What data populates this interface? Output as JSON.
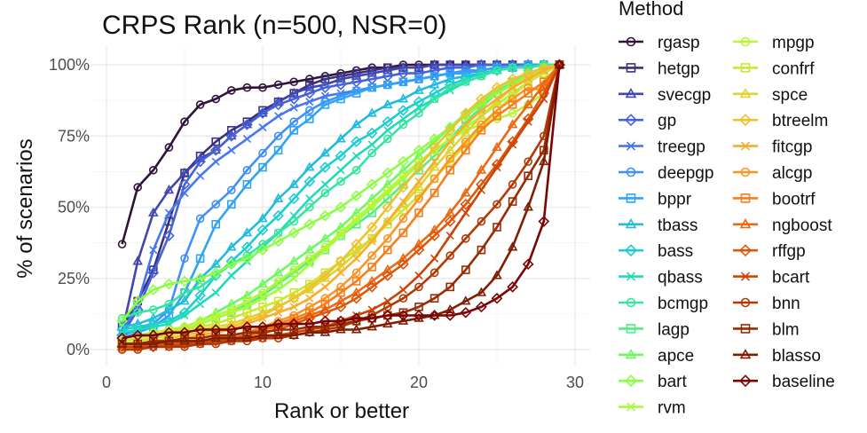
{
  "chart_data": {
    "type": "line",
    "title": "CRPS Rank (n=500, NSR=0)",
    "xlabel": "Rank or better",
    "ylabel": "% of scenarios",
    "xlim": [
      0,
      30
    ],
    "ylim": [
      0,
      100
    ],
    "x_ticks": [
      0,
      10,
      20,
      30
    ],
    "y_ticks": [
      0,
      25,
      50,
      75,
      100
    ],
    "y_tick_labels": [
      "0%",
      "25%",
      "50%",
      "75%",
      "100%"
    ],
    "grid": true,
    "legend_title": "Method",
    "legend_position": "right",
    "x": [
      1,
      2,
      3,
      4,
      5,
      6,
      7,
      8,
      9,
      10,
      11,
      12,
      13,
      14,
      15,
      16,
      17,
      18,
      19,
      20,
      21,
      22,
      23,
      24,
      25,
      26,
      27,
      28,
      29
    ],
    "series": [
      {
        "name": "rgasp",
        "color": "#30123b",
        "marker": "circle",
        "values": [
          37,
          57,
          63,
          71,
          80,
          86,
          88,
          91,
          92,
          92,
          93,
          94,
          95,
          96,
          97,
          98,
          99,
          99,
          100,
          100,
          100,
          100,
          100,
          100,
          100,
          100,
          100,
          100,
          100
        ]
      },
      {
        "name": "hetgp",
        "color": "#3b2f80",
        "marker": "square",
        "values": [
          8,
          17,
          28,
          45,
          62,
          68,
          73,
          77,
          80,
          84,
          87,
          90,
          93,
          95,
          96,
          97,
          98,
          99,
          99,
          99,
          100,
          100,
          100,
          100,
          100,
          100,
          100,
          100,
          100
        ]
      },
      {
        "name": "svecgp",
        "color": "#4146ad",
        "marker": "triangle",
        "values": [
          6,
          31,
          48,
          56,
          62,
          67,
          70,
          75,
          79,
          83,
          87,
          90,
          92,
          93,
          95,
          96,
          97,
          98,
          99,
          99,
          100,
          100,
          100,
          100,
          100,
          100,
          100,
          100,
          100
        ]
      },
      {
        "name": "gp",
        "color": "#4662d7",
        "marker": "diamond",
        "values": [
          5,
          14,
          27,
          40,
          58,
          66,
          70,
          75,
          79,
          83,
          86,
          88,
          90,
          92,
          93,
          94,
          95,
          96,
          97,
          97,
          98,
          99,
          99,
          100,
          100,
          100,
          100,
          100,
          100
        ]
      },
      {
        "name": "treegp",
        "color": "#4676f0",
        "marker": "cross",
        "values": [
          6,
          16,
          35,
          48,
          55,
          61,
          66,
          70,
          74,
          78,
          82,
          85,
          87,
          89,
          90,
          91,
          92,
          93,
          94,
          95,
          96,
          97,
          97,
          98,
          99,
          99,
          100,
          100,
          100
        ]
      },
      {
        "name": "deepgp",
        "color": "#3f8ffc",
        "marker": "circle",
        "values": [
          5,
          7,
          9,
          14,
          32,
          46,
          51,
          56,
          63,
          69,
          75,
          80,
          84,
          87,
          89,
          91,
          92,
          93,
          94,
          95,
          96,
          97,
          98,
          98,
          99,
          99,
          100,
          100,
          100
        ]
      },
      {
        "name": "bppr",
        "color": "#30a4f4",
        "marker": "square",
        "values": [
          4,
          6,
          8,
          12,
          20,
          32,
          44,
          51,
          58,
          64,
          70,
          77,
          81,
          86,
          88,
          90,
          92,
          93,
          94,
          95,
          96,
          97,
          97,
          98,
          99,
          99,
          100,
          100,
          100
        ]
      },
      {
        "name": "tbass",
        "color": "#22bbe0",
        "marker": "triangle",
        "values": [
          8,
          9,
          11,
          14,
          17,
          25,
          30,
          36,
          41,
          46,
          53,
          58,
          64,
          69,
          74,
          79,
          83,
          86,
          88,
          91,
          93,
          95,
          96,
          97,
          98,
          99,
          99,
          100,
          100
        ]
      },
      {
        "name": "bass",
        "color": "#1ccdd1",
        "marker": "diamond",
        "values": [
          7,
          8,
          9,
          10,
          13,
          19,
          26,
          31,
          36,
          42,
          47,
          53,
          59,
          64,
          68,
          73,
          76,
          80,
          84,
          87,
          90,
          93,
          95,
          97,
          98,
          99,
          99,
          100,
          100
        ]
      },
      {
        "name": "qbass",
        "color": "#21dab8",
        "marker": "cross",
        "values": [
          6,
          7,
          8,
          9,
          12,
          16,
          20,
          26,
          31,
          36,
          41,
          47,
          53,
          58,
          63,
          68,
          72,
          77,
          81,
          85,
          88,
          91,
          94,
          96,
          98,
          99,
          99,
          100,
          100
        ]
      },
      {
        "name": "bcmgp",
        "color": "#35e59f",
        "marker": "circle",
        "values": [
          11,
          13,
          14,
          16,
          20,
          22,
          26,
          30,
          33,
          37,
          41,
          45,
          50,
          55,
          59,
          63,
          69,
          74,
          79,
          83,
          88,
          92,
          94,
          96,
          98,
          99,
          99,
          100,
          100
        ]
      },
      {
        "name": "lagp",
        "color": "#4ef17e",
        "marker": "square",
        "values": [
          3,
          4,
          5,
          6,
          7,
          9,
          11,
          13,
          16,
          19,
          23,
          27,
          31,
          35,
          40,
          44,
          48,
          53,
          58,
          63,
          68,
          74,
          80,
          85,
          90,
          94,
          97,
          99,
          100
        ]
      },
      {
        "name": "apce",
        "color": "#6cf95f",
        "marker": "triangle",
        "values": [
          2,
          3,
          4,
          6,
          8,
          10,
          13,
          16,
          19,
          23,
          27,
          31,
          35,
          39,
          43,
          48,
          53,
          58,
          63,
          68,
          73,
          78,
          83,
          87,
          91,
          94,
          97,
          99,
          100
        ]
      },
      {
        "name": "bart",
        "color": "#8cfd44",
        "marker": "diamond",
        "values": [
          10,
          17,
          21,
          23,
          24,
          25,
          27,
          30,
          32,
          35,
          38,
          41,
          44,
          47,
          50,
          54,
          58,
          62,
          66,
          70,
          74,
          78,
          82,
          86,
          90,
          93,
          96,
          99,
          100
        ]
      },
      {
        "name": "rvm",
        "color": "#a4fc3b",
        "marker": "cross",
        "values": [
          3,
          4,
          5,
          6,
          7,
          9,
          11,
          13,
          15,
          18,
          21,
          25,
          30,
          35,
          40,
          45,
          50,
          55,
          60,
          65,
          70,
          74,
          78,
          82,
          86,
          90,
          94,
          97,
          100
        ]
      },
      {
        "name": "mpgp",
        "color": "#b9f435",
        "marker": "circle",
        "values": [
          4,
          5,
          6,
          7,
          8,
          10,
          12,
          14,
          17,
          20,
          24,
          28,
          32,
          36,
          41,
          46,
          51,
          56,
          61,
          66,
          70,
          74,
          77,
          79,
          81,
          83,
          86,
          90,
          100
        ]
      },
      {
        "name": "confrf",
        "color": "#cce632",
        "marker": "square",
        "values": [
          3,
          4,
          5,
          6,
          7,
          8,
          9,
          11,
          13,
          15,
          17,
          20,
          23,
          27,
          31,
          35,
          39,
          44,
          49,
          54,
          60,
          66,
          72,
          78,
          84,
          89,
          94,
          97,
          100
        ]
      },
      {
        "name": "spce",
        "color": "#ddd52f",
        "marker": "triangle",
        "values": [
          2,
          3,
          4,
          5,
          6,
          7,
          8,
          9,
          11,
          13,
          15,
          18,
          21,
          25,
          29,
          34,
          39,
          45,
          51,
          57,
          64,
          70,
          76,
          82,
          87,
          92,
          96,
          98,
          100
        ]
      },
      {
        "name": "btreelm",
        "color": "#ecc22f",
        "marker": "diamond",
        "values": [
          1,
          2,
          3,
          4,
          5,
          6,
          7,
          8,
          10,
          12,
          15,
          18,
          22,
          26,
          31,
          37,
          43,
          50,
          57,
          64,
          71,
          77,
          83,
          88,
          92,
          95,
          97,
          99,
          100
        ]
      },
      {
        "name": "fitcgp",
        "color": "#f8ad2e",
        "marker": "cross",
        "values": [
          1,
          2,
          2,
          3,
          4,
          5,
          6,
          7,
          9,
          11,
          13,
          15,
          18,
          22,
          27,
          32,
          38,
          45,
          52,
          59,
          66,
          73,
          79,
          84,
          88,
          92,
          95,
          98,
          100
        ]
      },
      {
        "name": "alcgp",
        "color": "#fc9526",
        "marker": "circle",
        "values": [
          0,
          1,
          1,
          2,
          2,
          3,
          4,
          5,
          6,
          8,
          10,
          12,
          15,
          18,
          22,
          27,
          33,
          39,
          46,
          53,
          60,
          67,
          73,
          79,
          84,
          88,
          92,
          91,
          100
        ]
      },
      {
        "name": "bootrf",
        "color": "#f67e1d",
        "marker": "square",
        "values": [
          1,
          1,
          2,
          2,
          3,
          3,
          4,
          5,
          6,
          7,
          9,
          11,
          13,
          16,
          20,
          24,
          29,
          35,
          41,
          48,
          55,
          63,
          70,
          77,
          82,
          86,
          90,
          94,
          100
        ]
      },
      {
        "name": "ngboost",
        "color": "#ec6914",
        "marker": "triangle",
        "values": [
          1,
          1,
          2,
          2,
          3,
          3,
          4,
          5,
          6,
          7,
          8,
          10,
          12,
          14,
          17,
          20,
          24,
          28,
          32,
          37,
          42,
          48,
          55,
          63,
          71,
          79,
          86,
          93,
          100
        ]
      },
      {
        "name": "rffgp",
        "color": "#dd560c",
        "marker": "diamond",
        "values": [
          1,
          1,
          1,
          2,
          2,
          3,
          3,
          4,
          5,
          6,
          7,
          9,
          11,
          13,
          15,
          18,
          22,
          26,
          30,
          35,
          40,
          45,
          51,
          58,
          65,
          73,
          81,
          90,
          100
        ]
      },
      {
        "name": "bcart",
        "color": "#cb4507",
        "marker": "cross",
        "values": [
          1,
          1,
          1,
          1,
          2,
          2,
          3,
          3,
          4,
          4,
          5,
          6,
          7,
          8,
          10,
          12,
          14,
          17,
          21,
          26,
          32,
          40,
          48,
          56,
          64,
          72,
          80,
          88,
          100
        ]
      },
      {
        "name": "bnn",
        "color": "#b43803",
        "marker": "circle",
        "values": [
          0,
          0,
          1,
          1,
          1,
          2,
          2,
          3,
          3,
          4,
          4,
          5,
          6,
          7,
          8,
          10,
          12,
          15,
          18,
          22,
          27,
          33,
          39,
          45,
          51,
          58,
          66,
          75,
          100
        ]
      },
      {
        "name": "blm",
        "color": "#9a2b02",
        "marker": "square",
        "values": [
          2,
          2,
          3,
          3,
          4,
          4,
          5,
          5,
          6,
          6,
          7,
          7,
          8,
          8,
          9,
          10,
          11,
          12,
          13,
          15,
          18,
          22,
          28,
          35,
          43,
          52,
          61,
          70,
          100
        ]
      },
      {
        "name": "blasso",
        "color": "#801e02",
        "marker": "triangle",
        "values": [
          2,
          2,
          2,
          3,
          3,
          3,
          4,
          4,
          4,
          5,
          5,
          5,
          6,
          6,
          7,
          7,
          8,
          9,
          10,
          11,
          12,
          14,
          17,
          20,
          26,
          36,
          50,
          66,
          100
        ]
      },
      {
        "name": "baseline",
        "color": "#7a0403",
        "marker": "diamond",
        "values": [
          4,
          5,
          5,
          6,
          6,
          7,
          7,
          7,
          8,
          8,
          9,
          9,
          9,
          10,
          10,
          11,
          11,
          12,
          12,
          12,
          12,
          12,
          13,
          15,
          18,
          22,
          30,
          45,
          100
        ]
      }
    ]
  }
}
